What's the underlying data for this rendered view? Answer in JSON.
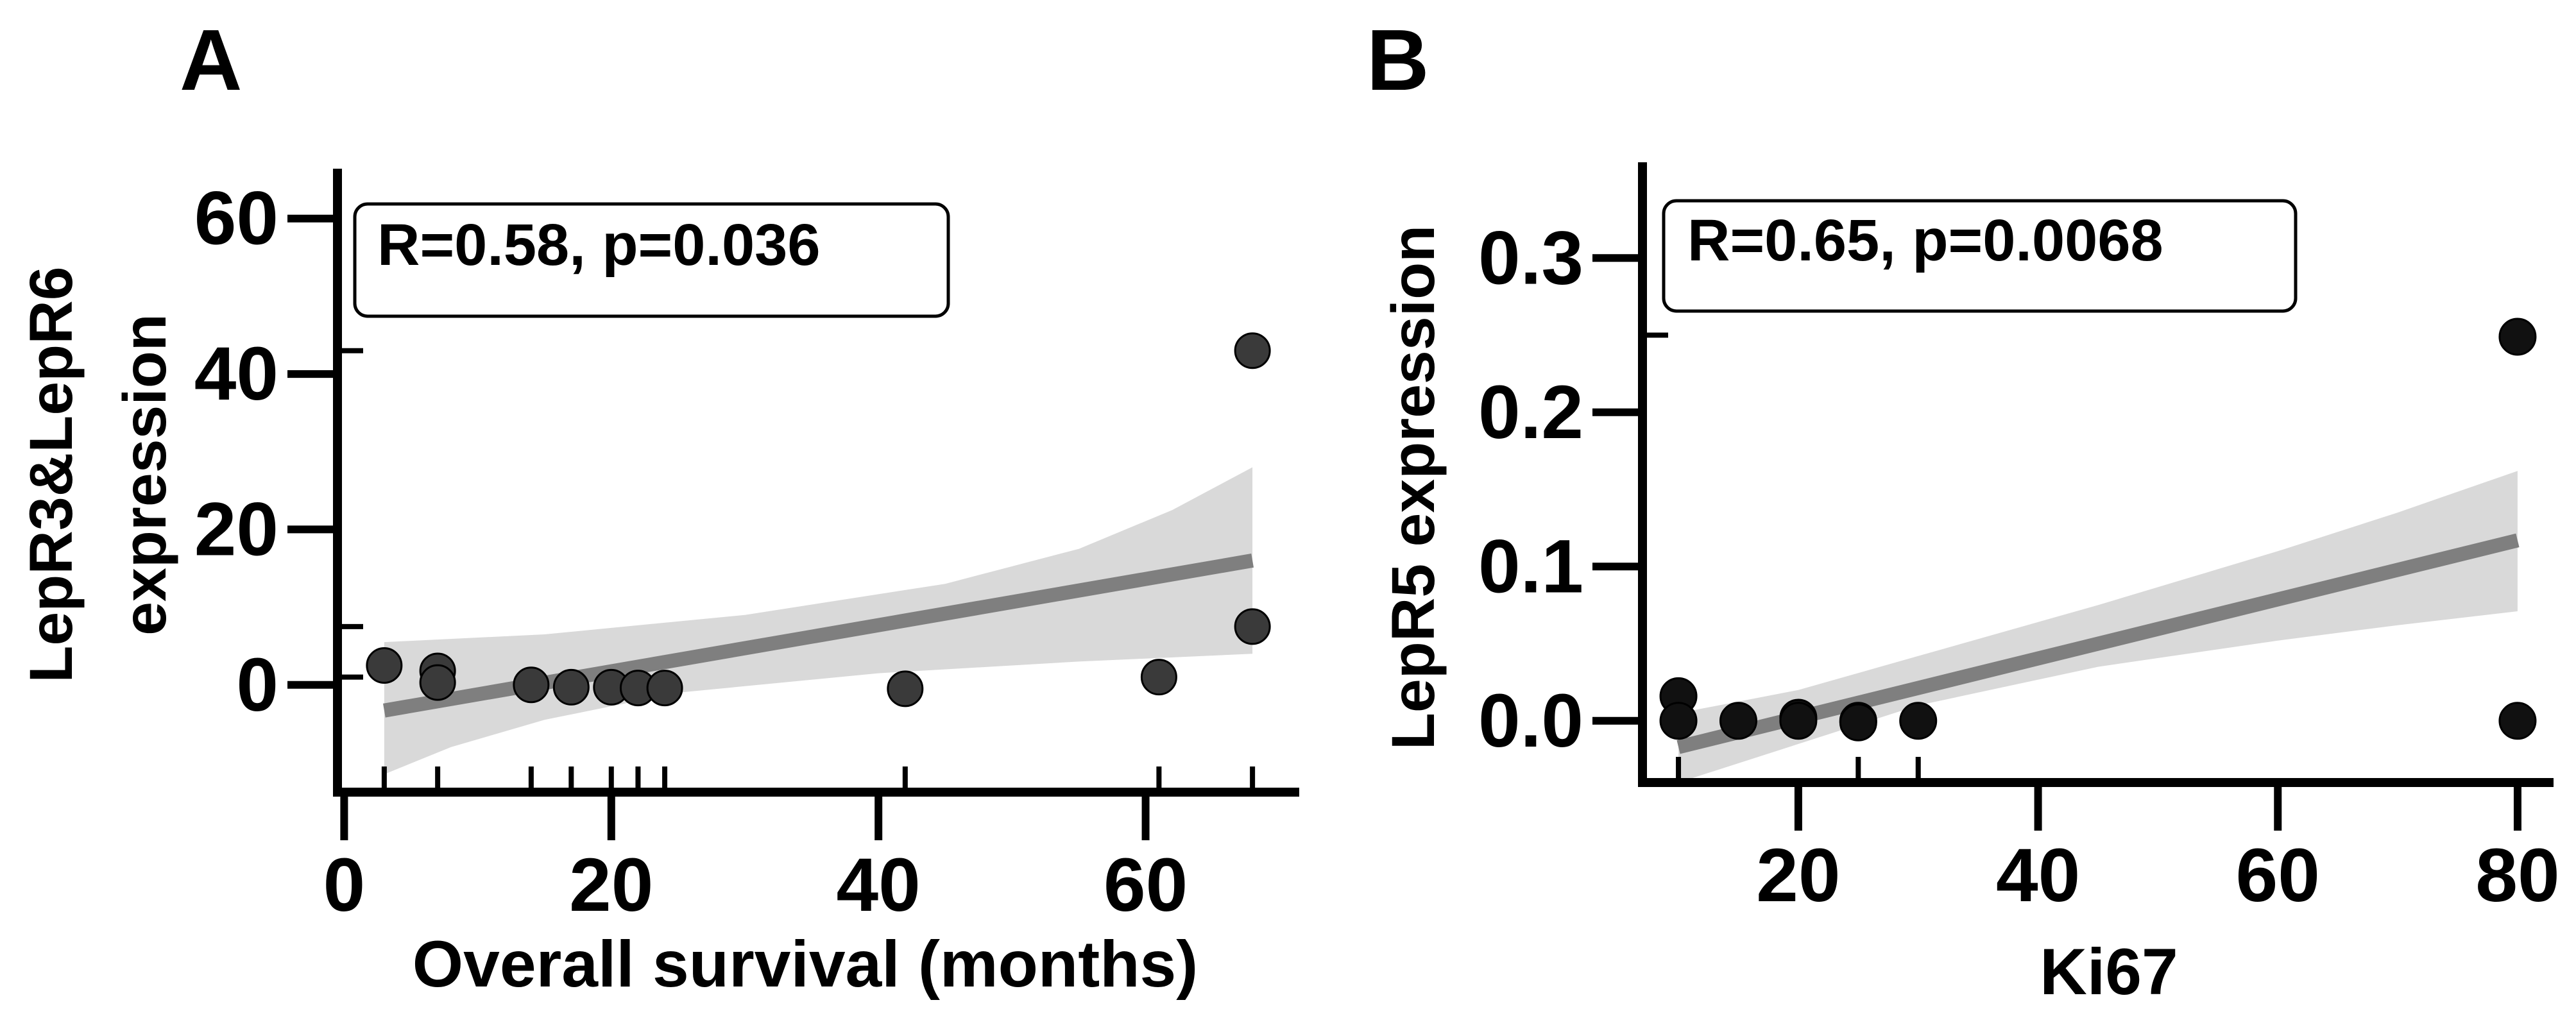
{
  "colors": {
    "axis": "#000000",
    "band": "#d9d9d9",
    "line": "#7f7f7f",
    "point_a": "#3a3a3a",
    "point_b": "#111111"
  },
  "chart_data": [
    {
      "panel_label": "A",
      "type": "scatter",
      "annotation": "R=0.58, p=0.036",
      "xlabel": "Overall survival (months)",
      "ylabel_lines": [
        "LepR3&LepR6",
        "expression"
      ],
      "xlim": [
        -0.5,
        71.5
      ],
      "ylim": [
        -13.8,
        66
      ],
      "x_ticks": [
        0,
        20,
        40,
        60
      ],
      "x_tick_labels": [
        "0",
        "20",
        "40",
        "60"
      ],
      "x_minor_ticks": [
        3,
        7,
        14,
        17,
        20,
        22,
        24,
        42,
        61,
        68
      ],
      "y_ticks": [
        0,
        20,
        40,
        60
      ],
      "y_tick_labels": [
        "0",
        "20",
        "40",
        "60"
      ],
      "y_minor_ticks": [
        1,
        7.5,
        43
      ],
      "points": [
        {
          "x": 3,
          "y": 2.5
        },
        {
          "x": 7,
          "y": 1.8
        },
        {
          "x": 7,
          "y": 0.3
        },
        {
          "x": 14,
          "y": 0
        },
        {
          "x": 17,
          "y": -0.3
        },
        {
          "x": 20,
          "y": -0.3
        },
        {
          "x": 22,
          "y": -0.4
        },
        {
          "x": 24,
          "y": -0.4
        },
        {
          "x": 42,
          "y": -0.5
        },
        {
          "x": 61,
          "y": 1
        },
        {
          "x": 68,
          "y": 43
        },
        {
          "x": 68,
          "y": 7.5
        }
      ],
      "fit": {
        "x": [
          3,
          68
        ],
        "y": [
          -3.3,
          16
        ]
      },
      "band_upper": [
        {
          "x": 3,
          "y": 5.5
        },
        {
          "x": 15,
          "y": 6.5
        },
        {
          "x": 30,
          "y": 9
        },
        {
          "x": 45,
          "y": 13
        },
        {
          "x": 55,
          "y": 17.5
        },
        {
          "x": 62,
          "y": 22.5
        },
        {
          "x": 68,
          "y": 28
        }
      ],
      "band_lower": [
        {
          "x": 3,
          "y": -11.5
        },
        {
          "x": 8,
          "y": -8
        },
        {
          "x": 15,
          "y": -4.5
        },
        {
          "x": 25,
          "y": -1
        },
        {
          "x": 40,
          "y": 1.5
        },
        {
          "x": 55,
          "y": 3
        },
        {
          "x": 68,
          "y": 4
        }
      ]
    },
    {
      "panel_label": "B",
      "type": "scatter",
      "annotation": "R=0.65, p=0.0068",
      "xlabel": "Ki67",
      "ylabel_lines": [
        "LepR5 expression"
      ],
      "xlim": [
        7,
        83
      ],
      "ylim": [
        -0.04,
        0.36
      ],
      "x_ticks": [
        20,
        40,
        60,
        80
      ],
      "x_tick_labels": [
        "20",
        "40",
        "60",
        "80"
      ],
      "x_minor_ticks": [
        10,
        25,
        30
      ],
      "y_ticks": [
        0,
        0.1,
        0.2,
        0.3
      ],
      "y_tick_labels": [
        "0.0",
        "0.1",
        "0.2",
        "0.3"
      ],
      "y_minor_ticks": [
        0.25
      ],
      "points": [
        {
          "x": 10,
          "y": 0.016
        },
        {
          "x": 10,
          "y": 0
        },
        {
          "x": 15,
          "y": 0
        },
        {
          "x": 20,
          "y": 0.002
        },
        {
          "x": 20,
          "y": 0
        },
        {
          "x": 25,
          "y": 0
        },
        {
          "x": 25,
          "y": -0.001
        },
        {
          "x": 30,
          "y": 0
        },
        {
          "x": 80,
          "y": 0.249
        },
        {
          "x": 80,
          "y": 0
        }
      ],
      "fit": {
        "x": [
          10,
          80
        ],
        "y": [
          -0.017,
          0.117
        ]
      },
      "band_upper": [
        {
          "x": 10,
          "y": 0.005
        },
        {
          "x": 20,
          "y": 0.02
        },
        {
          "x": 30,
          "y": 0.042
        },
        {
          "x": 45,
          "y": 0.075
        },
        {
          "x": 60,
          "y": 0.11
        },
        {
          "x": 70,
          "y": 0.135
        },
        {
          "x": 80,
          "y": 0.162
        }
      ],
      "band_lower": [
        {
          "x": 10,
          "y": -0.04
        },
        {
          "x": 20,
          "y": -0.015
        },
        {
          "x": 30,
          "y": 0.01
        },
        {
          "x": 45,
          "y": 0.035
        },
        {
          "x": 60,
          "y": 0.052
        },
        {
          "x": 70,
          "y": 0.062
        },
        {
          "x": 80,
          "y": 0.071
        }
      ]
    }
  ]
}
